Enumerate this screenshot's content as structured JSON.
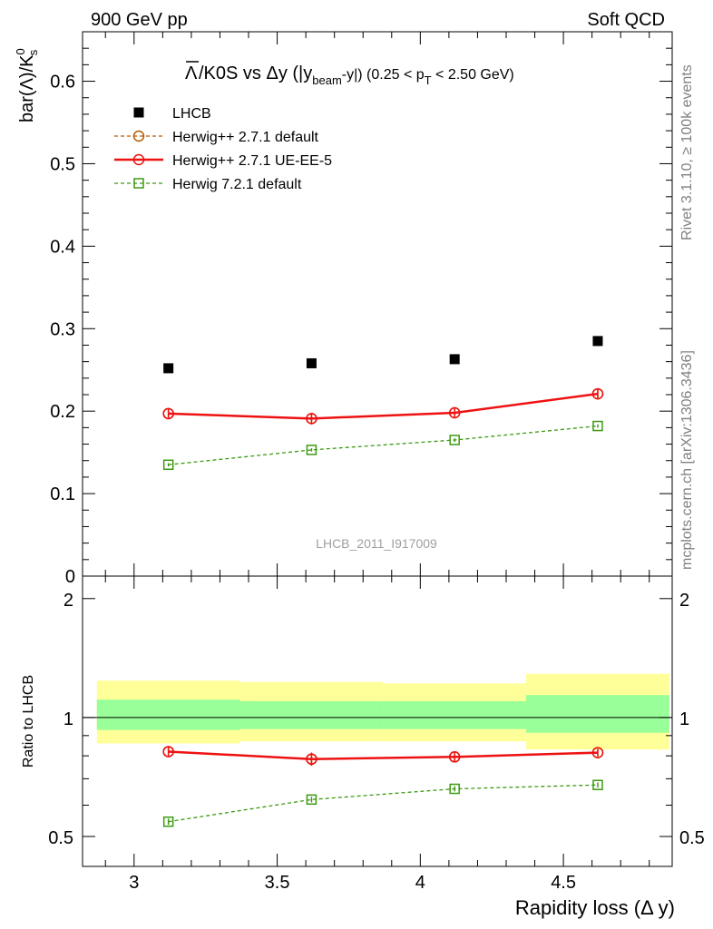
{
  "header": {
    "left": "900 GeV pp",
    "right": "Soft QCD"
  },
  "side_labels": {
    "rivet": "Rivet 3.1.10, ≥ 100k events",
    "mcplots": "mcplots.cern.ch [arXiv:1306.3436]"
  },
  "chart_data": [
    {
      "type": "scatter",
      "title": "Λ̅/K0S vs Δy (|y_beam-y|) (0.25 < p_T < 2.50 GeV)",
      "title_parts": {
        "main": "/K0S vs Δy (|y",
        "sub_beam": "beam",
        "mid": "-y|) (0.25 < p",
        "sub_T": "T",
        "end": " < 2.50 GeV)"
      },
      "ylabel": "bar(Λ)/K",
      "ylabel_sup": "0",
      "ylabel_sub": "s",
      "xlabel": "Rapidity loss (Δ y)",
      "watermark": "LHCB_2011_I917009",
      "xlim": [
        2.82,
        4.88
      ],
      "ylim": [
        0,
        0.66
      ],
      "x_ticks": [
        3,
        3.5,
        4,
        4.5
      ],
      "x_tick_labels": [
        "3",
        "3.5",
        "4",
        "4.5"
      ],
      "y_ticks": [
        0,
        0.1,
        0.2,
        0.3,
        0.4,
        0.5,
        0.6
      ],
      "y_tick_labels": [
        "0",
        "0.1",
        "0.2",
        "0.3",
        "0.4",
        "0.5",
        "0.6"
      ],
      "x_bins": [
        2.87,
        3.37,
        3.87,
        4.37,
        4.87
      ],
      "x": [
        3.12,
        3.62,
        4.12,
        4.62
      ],
      "legend_position": "top-left",
      "series": [
        {
          "name": "LHCB",
          "marker": "filled-square",
          "color": "#000000",
          "line": "none",
          "values": [
            0.252,
            0.258,
            0.263,
            0.285
          ],
          "errors": [
            0.0,
            0.0,
            0.0,
            0.0
          ]
        },
        {
          "name": "Herwig++ 2.7.1 default",
          "marker": "open-circle",
          "color": "#b35900",
          "line": "dashed",
          "values": [
            0.197,
            0.191,
            0.198,
            0.221
          ],
          "errors": [
            0.006,
            0.007,
            0.006,
            0.005
          ]
        },
        {
          "name": "Herwig++ 2.7.1 UE-EE-5",
          "marker": "open-circle",
          "color": "#ee1111",
          "line": "solid",
          "values": [
            0.197,
            0.191,
            0.198,
            0.221
          ],
          "errors": [
            0.006,
            0.007,
            0.006,
            0.005
          ]
        },
        {
          "name": "Herwig 7.2.1 default",
          "marker": "open-square",
          "color": "#3c9a12",
          "line": "dashed",
          "values": [
            0.135,
            0.153,
            0.165,
            0.182
          ],
          "errors": [
            0.002,
            0.002,
            0.002,
            0.002
          ]
        }
      ]
    },
    {
      "type": "scatter",
      "ylabel": "Ratio to LHCB",
      "xlabel": "Rapidity loss (Δ y)",
      "xlim": [
        2.82,
        4.88
      ],
      "ylim": [
        0.42,
        2.28
      ],
      "ylog": true,
      "y_ticks": [
        0.5,
        1,
        2
      ],
      "y_tick_labels": [
        "0.5",
        "1",
        "2"
      ],
      "x_ticks": [
        3,
        3.5,
        4,
        4.5
      ],
      "x_tick_labels": [
        "3",
        "3.5",
        "4",
        "4.5"
      ],
      "bands": {
        "x_bins": [
          2.87,
          3.37,
          3.87,
          4.37,
          4.87
        ],
        "outer": [
          [
            0.86,
            1.24
          ],
          [
            0.87,
            1.23
          ],
          [
            0.87,
            1.22
          ],
          [
            0.83,
            1.29
          ]
        ],
        "inner": [
          [
            0.93,
            1.11
          ],
          [
            0.935,
            1.1
          ],
          [
            0.935,
            1.1
          ],
          [
            0.915,
            1.14
          ]
        ],
        "outer_color": "#ffff99",
        "inner_color": "#99ff99"
      },
      "series": [
        {
          "name": "Herwig++ 2.7.1 default",
          "color": "#b35900",
          "line": "dashed",
          "marker": "open-circle",
          "values": [
            0.82,
            0.785,
            0.795,
            0.815
          ],
          "errors": [
            0.025,
            0.03,
            0.022,
            0.018
          ]
        },
        {
          "name": "Herwig++ 2.7.1 UE-EE-5",
          "color": "#ee1111",
          "line": "solid",
          "marker": "open-circle",
          "values": [
            0.82,
            0.785,
            0.795,
            0.815
          ],
          "errors": [
            0.025,
            0.03,
            0.022,
            0.018
          ]
        },
        {
          "name": "Herwig 7.2.1 default",
          "color": "#3c9a12",
          "line": "dashed",
          "marker": "open-square",
          "values": [
            0.545,
            0.62,
            0.66,
            0.675
          ],
          "errors": [
            0.01,
            0.01,
            0.01,
            0.01
          ]
        }
      ]
    }
  ]
}
